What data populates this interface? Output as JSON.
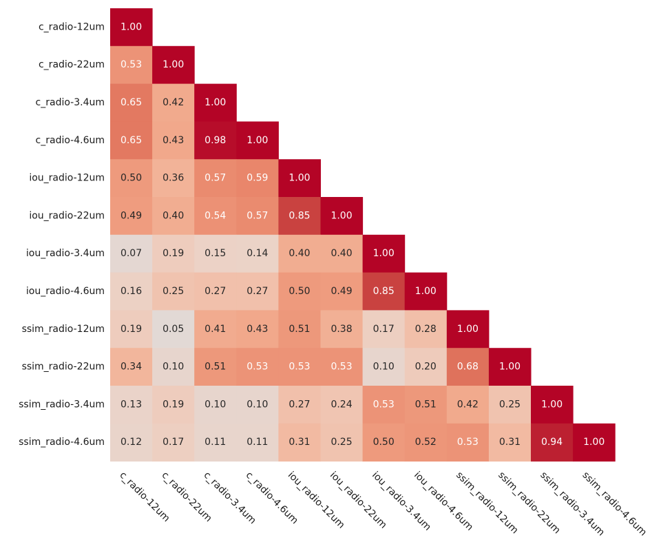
{
  "chart_data": {
    "type": "heatmap",
    "title": "",
    "subtitle": "",
    "layout": "lower-triangle",
    "value_format": "2-decimal",
    "value_range": [
      0,
      1
    ],
    "colormap": "coolwarm-red",
    "labels": [
      "c_radio-12um",
      "c_radio-22um",
      "c_radio-3.4um",
      "c_radio-4.6um",
      "iou_radio-12um",
      "iou_radio-22um",
      "iou_radio-3.4um",
      "iou_radio-4.6um",
      "ssim_radio-12um",
      "ssim_radio-22um",
      "ssim_radio-3.4um",
      "ssim_radio-4.6um"
    ],
    "matrix": [
      [
        1.0
      ],
      [
        0.53,
        1.0
      ],
      [
        0.65,
        0.42,
        1.0
      ],
      [
        0.65,
        0.43,
        0.98,
        1.0
      ],
      [
        0.5,
        0.36,
        0.57,
        0.59,
        1.0
      ],
      [
        0.49,
        0.4,
        0.54,
        0.57,
        0.85,
        1.0
      ],
      [
        0.07,
        0.19,
        0.15,
        0.14,
        0.4,
        0.4,
        1.0
      ],
      [
        0.16,
        0.25,
        0.27,
        0.27,
        0.5,
        0.49,
        0.85,
        1.0
      ],
      [
        0.19,
        0.05,
        0.41,
        0.43,
        0.51,
        0.38,
        0.17,
        0.28,
        1.0
      ],
      [
        0.34,
        0.1,
        0.51,
        0.53,
        0.53,
        0.53,
        0.1,
        0.2,
        0.68,
        1.0
      ],
      [
        0.13,
        0.19,
        0.1,
        0.1,
        0.27,
        0.24,
        0.53,
        0.51,
        0.42,
        0.25,
        1.0
      ],
      [
        0.12,
        0.17,
        0.11,
        0.11,
        0.31,
        0.25,
        0.5,
        0.52,
        0.53,
        0.31,
        0.94,
        1.0
      ]
    ]
  }
}
